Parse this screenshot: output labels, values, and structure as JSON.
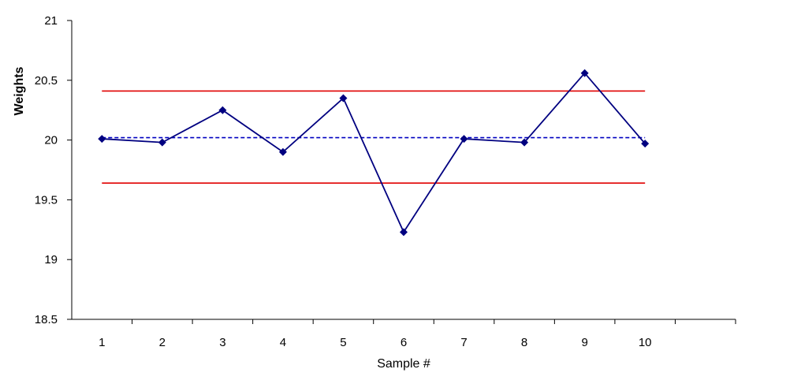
{
  "chart_data": {
    "type": "line",
    "title": "",
    "xlabel": "Sample #",
    "ylabel": "Weights",
    "ylim": [
      18.5,
      21
    ],
    "y_ticks": [
      "18.5",
      "19",
      "19.5",
      "20",
      "20.5",
      "21"
    ],
    "y_tick_values": [
      18.5,
      19,
      19.5,
      20,
      20.5,
      21
    ],
    "categories": [
      "1",
      "2",
      "3",
      "4",
      "5",
      "6",
      "7",
      "8",
      "9",
      "10"
    ],
    "category_slots": 11,
    "series": [
      {
        "values": [
          20.01,
          19.98,
          20.25,
          19.9,
          20.35,
          19.23,
          20.01,
          19.98,
          20.56,
          19.97
        ],
        "color": "#000080",
        "marker": "diamond"
      }
    ],
    "reference_lines": [
      {
        "value": 20.41,
        "color": "#e00000",
        "style": "solid"
      },
      {
        "value": 20.02,
        "color": "#0000c0",
        "style": "dashed"
      },
      {
        "value": 19.64,
        "color": "#e00000",
        "style": "solid"
      }
    ],
    "grid": false,
    "legend": "none"
  }
}
